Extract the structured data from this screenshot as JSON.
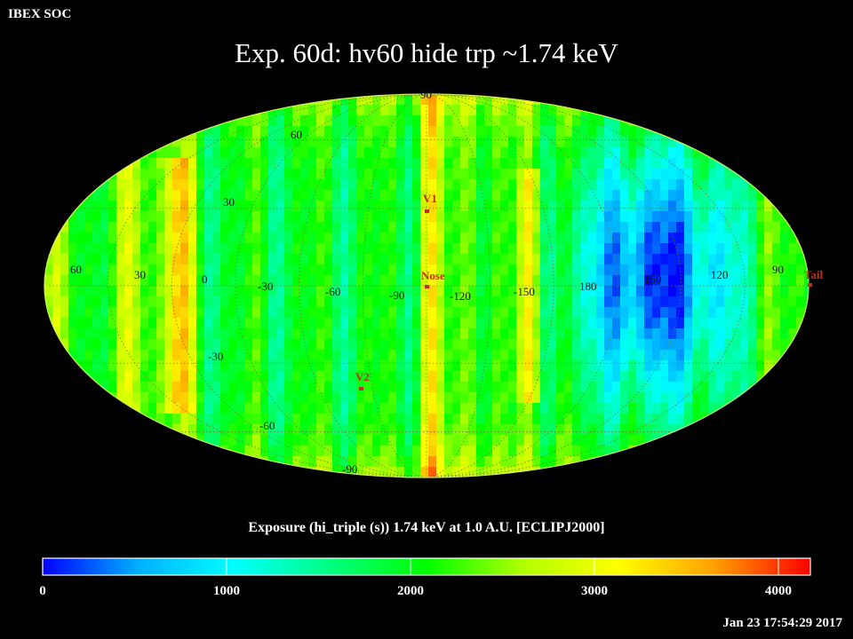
{
  "header": {
    "soc_label": "IBEX SOC",
    "title": "Exp.   60d: hv60 hide trp ~1.74 keV"
  },
  "map": {
    "projection": "Mollweide ecliptic sky map",
    "lat_labels": [
      "90",
      "60",
      "30",
      "-30",
      "-60",
      "-90"
    ],
    "lon_labels": [
      "60",
      "30",
      "0",
      "-30",
      "-60",
      "-90",
      "-120",
      "-150",
      "180",
      "150",
      "120",
      "90"
    ],
    "markers": [
      {
        "name": "V1",
        "label": "V1",
        "lon": -90,
        "lat": 35
      },
      {
        "name": "Nose",
        "label": "Nose",
        "lon": -105,
        "lat": 5
      },
      {
        "name": "V2",
        "label": "V2",
        "lon": -75,
        "lat": -33
      },
      {
        "name": "Tail",
        "label": "Tail",
        "lon": 76,
        "lat": -5
      }
    ],
    "marker_color": "#c03020",
    "grid_color": "#6b7a2a"
  },
  "colorbar": {
    "title": "Exposure (hi_triple (s))  1.74 keV at 1.0 A.U. [ECLIPJ2000]",
    "min": 0,
    "max": 4000,
    "ticks": [
      {
        "label": "0",
        "value": 0
      },
      {
        "label": "1000",
        "value": 1000
      },
      {
        "label": "2000",
        "value": 2000
      },
      {
        "label": "3000",
        "value": 3000
      },
      {
        "label": "4000",
        "value": 4000
      }
    ],
    "stops": [
      "#0000ff",
      "#00b0ff",
      "#00ffff",
      "#00ff80",
      "#00ff00",
      "#b0ff00",
      "#ffff00",
      "#ffa000",
      "#ff0000"
    ]
  },
  "footer": {
    "timestamp": "Jan 23 17:54:29 2017"
  }
}
